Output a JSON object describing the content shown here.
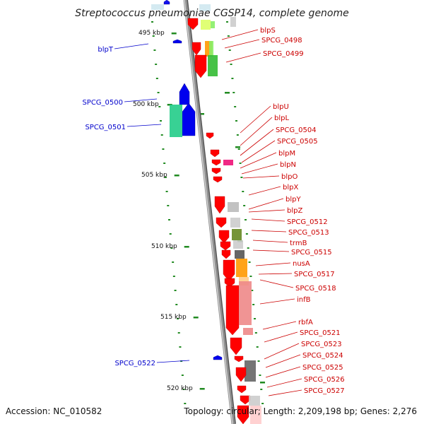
{
  "title": "Streptococcus pneumoniae CGSP14, complete genome",
  "footer": {
    "accession": "Accession: NC_010582",
    "summary": "Topology: circular; Length: 2,209,198 bp; Genes: 2,276"
  },
  "colors": {
    "forward_gene": "#ff0000",
    "reverse_gene": "#0000ee",
    "backbone": "#909090",
    "kbp_ticks": "#228b22",
    "right_label": "#cc0000",
    "left_label": "#0000cc"
  },
  "kbp_labels": [
    "495 kbp",
    "500 kbp",
    "505 kbp",
    "510 kbp",
    "515 kbp",
    "520 kbp"
  ],
  "right_genes": [
    "blpS",
    "SPCG_0498",
    "SPCG_0499",
    "blpU",
    "blpL",
    "SPCG_0504",
    "SPCG_0505",
    "blpM",
    "blpN",
    "blpO",
    "blpX",
    "blpY",
    "blpZ",
    "SPCG_0512",
    "SPCG_0513",
    "trmB",
    "SPCG_0515",
    "nusA",
    "SPCG_0517",
    "SPCG_0518",
    "infB",
    "rbfA",
    "SPCG_0521",
    "SPCG_0523",
    "SPCG_0524",
    "SPCG_0525",
    "SPCG_0526",
    "SPCG_0527"
  ],
  "left_genes": [
    "blpT",
    "SPCG_0500",
    "SPCG_0501",
    "SPCG_0522"
  ]
}
